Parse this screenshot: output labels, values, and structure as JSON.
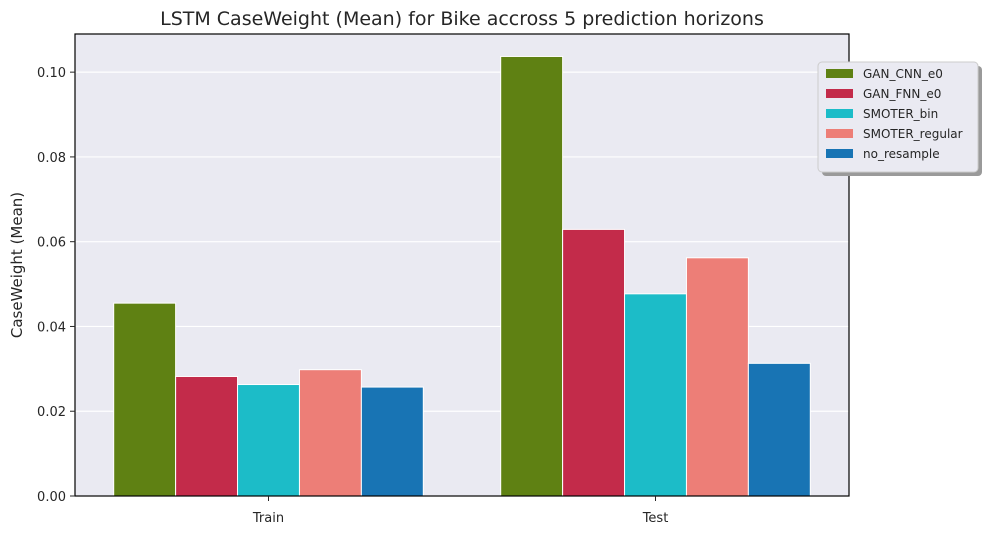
{
  "chart_data": {
    "type": "bar",
    "title": "LSTM CaseWeight (Mean) for Bike accross 5 prediction horizons",
    "xlabel": "",
    "ylabel": "CaseWeight (Mean)",
    "categories": [
      "Train",
      "Test"
    ],
    "ylim": [
      0,
      0.109
    ],
    "yticks": [
      "0.00",
      "0.02",
      "0.04",
      "0.06",
      "0.08",
      "0.10"
    ],
    "grid": true,
    "legend_position": "top-right",
    "colors": {
      "plot_background": "#eaeaf2",
      "grid": "#ffffff"
    },
    "series": [
      {
        "name": "GAN_CNN_e0",
        "color": "#5f8113",
        "values": [
          0.0455,
          0.1037
        ]
      },
      {
        "name": "GAN_FNN_e0",
        "color": "#c32b4a",
        "values": [
          0.0282,
          0.0629
        ]
      },
      {
        "name": "SMOTER_bin",
        "color": "#1cbcc8",
        "values": [
          0.0263,
          0.0477
        ]
      },
      {
        "name": "SMOTER_regular",
        "color": "#ed7e77",
        "values": [
          0.0298,
          0.0562
        ]
      },
      {
        "name": "no_resample",
        "color": "#1874b4",
        "values": [
          0.0257,
          0.0313
        ]
      }
    ]
  }
}
